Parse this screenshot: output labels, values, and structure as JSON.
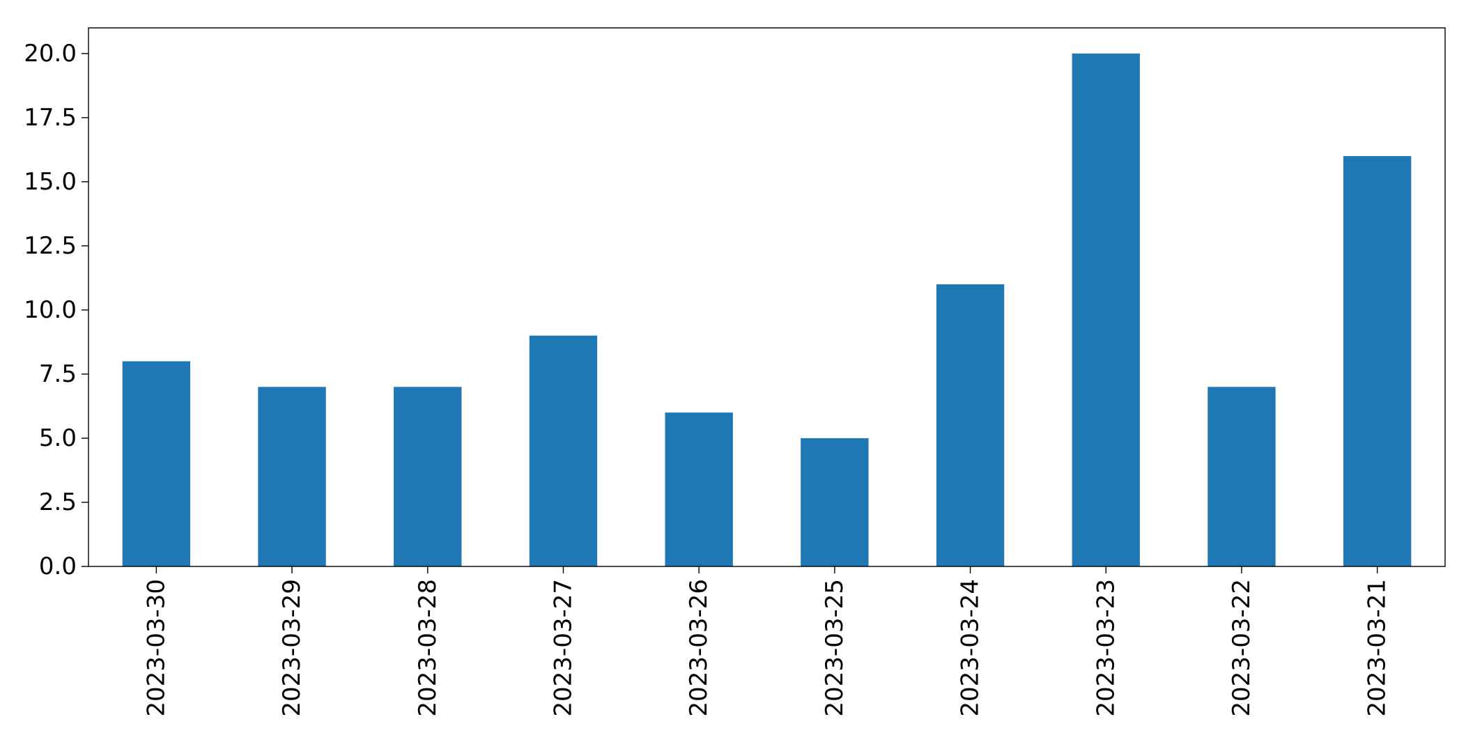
{
  "chart_data": {
    "type": "bar",
    "title": "",
    "xlabel": "",
    "ylabel": "",
    "categories": [
      "2023-03-30",
      "2023-03-29",
      "2023-03-28",
      "2023-03-27",
      "2023-03-26",
      "2023-03-25",
      "2023-03-24",
      "2023-03-23",
      "2023-03-22",
      "2023-03-21"
    ],
    "values": [
      8,
      7,
      7,
      9,
      6,
      5,
      11,
      20,
      7,
      16
    ],
    "ylim": [
      0,
      21
    ],
    "yticks": [
      "0.0",
      "2.5",
      "5.0",
      "7.5",
      "10.0",
      "12.5",
      "15.0",
      "17.5",
      "20.0"
    ],
    "grid": false,
    "legend": "none",
    "bar_color": "#1f77b4",
    "x_tick_rotation": "vertical"
  }
}
